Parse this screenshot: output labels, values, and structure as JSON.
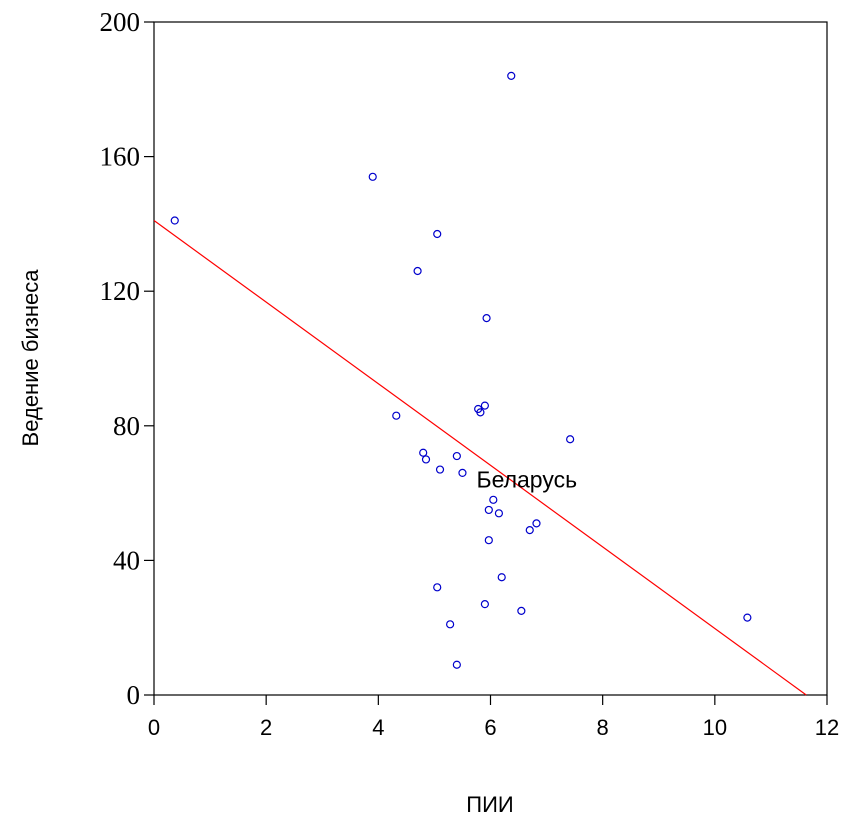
{
  "chart_data": {
    "type": "scatter",
    "xlabel": "ПИИ",
    "ylabel": "Ведение бизнеса",
    "xlim": [
      0,
      12
    ],
    "ylim": [
      0,
      200
    ],
    "x_ticks": [
      "0",
      "2",
      "4",
      "6",
      "8",
      "10",
      "12"
    ],
    "y_ticks": [
      "0",
      "40",
      "80",
      "120",
      "160",
      "200"
    ],
    "grid": false,
    "legend": "none",
    "colors": {
      "points": "#0000cc",
      "fit_line": "#ff0000",
      "axes": "#000000"
    },
    "points": [
      {
        "x": 0.37,
        "y": 141
      },
      {
        "x": 3.9,
        "y": 154
      },
      {
        "x": 4.32,
        "y": 83
      },
      {
        "x": 4.7,
        "y": 126
      },
      {
        "x": 4.8,
        "y": 72
      },
      {
        "x": 4.85,
        "y": 70
      },
      {
        "x": 5.05,
        "y": 137
      },
      {
        "x": 5.05,
        "y": 32
      },
      {
        "x": 5.1,
        "y": 67
      },
      {
        "x": 5.28,
        "y": 21
      },
      {
        "x": 5.4,
        "y": 71
      },
      {
        "x": 5.4,
        "y": 9
      },
      {
        "x": 5.5,
        "y": 66
      },
      {
        "x": 5.78,
        "y": 85
      },
      {
        "x": 5.82,
        "y": 84
      },
      {
        "x": 5.9,
        "y": 86
      },
      {
        "x": 5.9,
        "y": 27
      },
      {
        "x": 5.93,
        "y": 112
      },
      {
        "x": 5.97,
        "y": 55
      },
      {
        "x": 5.97,
        "y": 46
      },
      {
        "x": 6.05,
        "y": 58
      },
      {
        "x": 6.15,
        "y": 54
      },
      {
        "x": 6.2,
        "y": 35
      },
      {
        "x": 6.37,
        "y": 184
      },
      {
        "x": 6.55,
        "y": 25
      },
      {
        "x": 6.7,
        "y": 49
      },
      {
        "x": 6.82,
        "y": 51
      },
      {
        "x": 7.42,
        "y": 76
      },
      {
        "x": 10.58,
        "y": 23
      }
    ],
    "fit_line": {
      "x": [
        0,
        11.63
      ],
      "y": [
        141,
        0
      ]
    },
    "annotations": [
      {
        "text": "Беларусь",
        "x": 5.75,
        "y": 64
      }
    ]
  }
}
